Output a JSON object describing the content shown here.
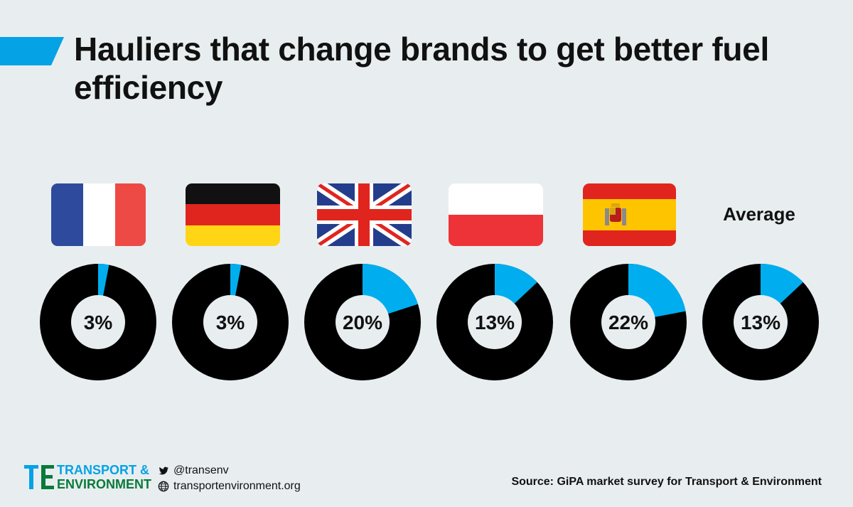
{
  "title": "Hauliers that change brands to get better fuel efficiency",
  "colors": {
    "background": "#e8eef0",
    "accent": "#05a2e6",
    "donut_fill": "#000000",
    "donut_highlight": "#00aeef",
    "brand_green": "#0a7a3a"
  },
  "chart_data": {
    "type": "pie",
    "variant": "donut",
    "categories": [
      "France",
      "Germany",
      "United Kingdom",
      "Poland",
      "Spain",
      "Average"
    ],
    "values": [
      3,
      3,
      20,
      13,
      22,
      13
    ],
    "value_labels": [
      "3%",
      "3%",
      "20%",
      "13%",
      "22%",
      "13%"
    ],
    "unit": "%",
    "average_label": "Average"
  },
  "flags": [
    "france-flag-icon",
    "germany-flag-icon",
    "uk-flag-icon",
    "poland-flag-icon",
    "spain-flag-icon"
  ],
  "footer": {
    "brand_line1": "TRANSPORT &",
    "brand_line2": "ENVIRONMENT",
    "twitter": "@transenv",
    "website": "transportenvironment.org",
    "source": "Source: GiPA market survey for Transport & Environment"
  }
}
